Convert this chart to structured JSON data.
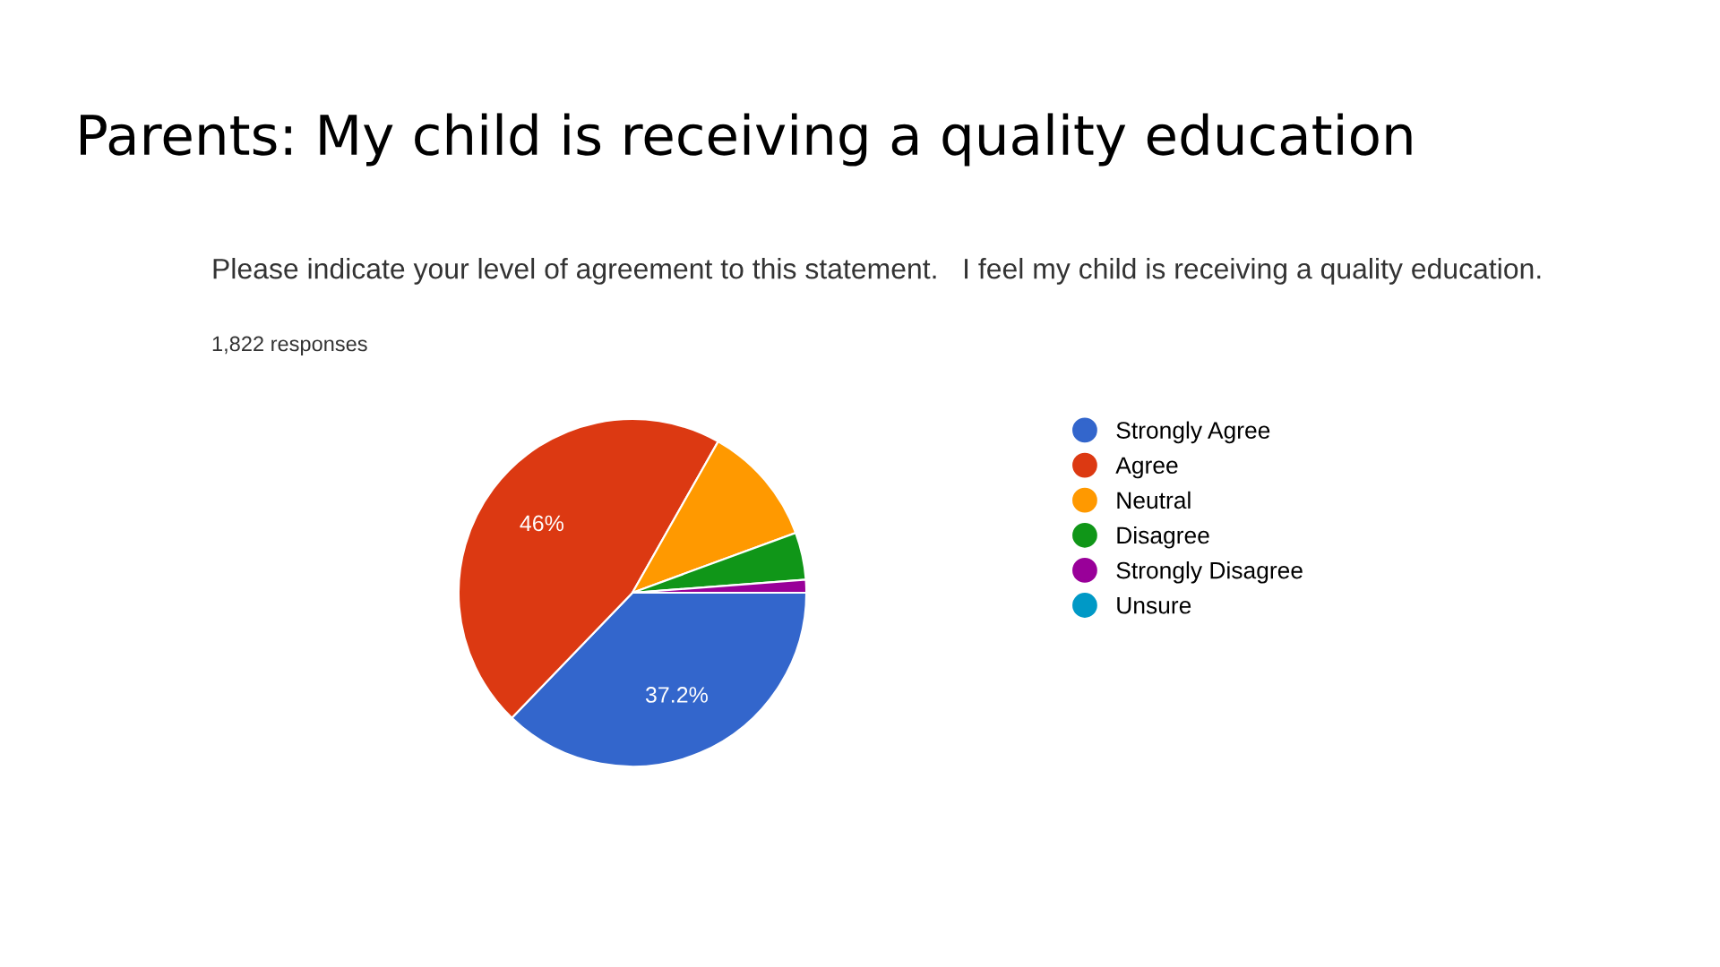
{
  "chart_data": {
    "type": "pie",
    "title": "Parents: My child is receiving a quality education",
    "subtitle": "Please indicate your level of agreement to this statement.   I feel my child is receiving a quality education.",
    "annotations": [
      "1,822 responses"
    ],
    "categories": [
      "Strongly Agree",
      "Agree",
      "Neutral",
      "Disagree",
      "Strongly Disagree",
      "Unsure"
    ],
    "values": [
      37.2,
      46,
      11.2,
      4.4,
      1.2,
      0
    ],
    "value_labels": [
      "37.2%",
      "46%",
      null,
      null,
      null,
      null
    ],
    "colors": [
      "#3366cc",
      "#dc3912",
      "#ff9900",
      "#109618",
      "#990099",
      "#0099c6"
    ],
    "legend": "right"
  }
}
